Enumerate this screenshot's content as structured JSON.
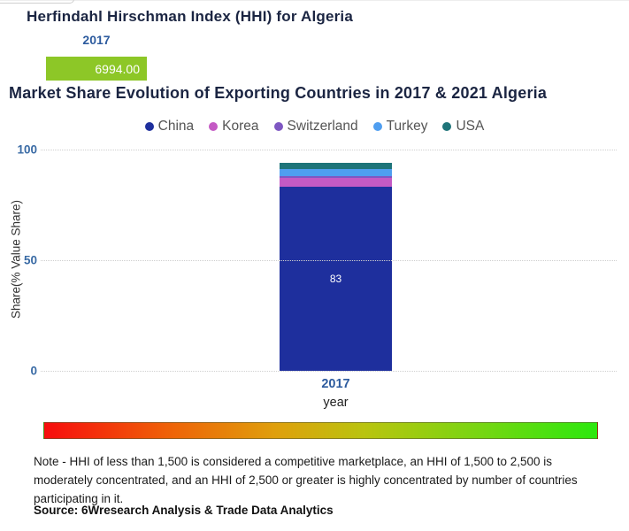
{
  "hhi_chart": {
    "title": "Herfindahl Hirschman Index (HHI) for Algeria",
    "year_label": "2017",
    "value_label": "6994.00",
    "bar_color": "#8dc727"
  },
  "market_chart": {
    "title": "Market Share Evolution of Exporting Countries in 2017 & 2021 Algeria",
    "x_tick": "2017",
    "xlabel": "year",
    "ylabel": "Share(% Value Share)"
  },
  "footer": {
    "note": "Note - HHI of less than 1,500 is considered a competitive marketplace, an HHI of 1,500 to 2,500 is moderately concentrated, and an HHI of 2,500 or greater is highly concentrated by number of countries participating in it.",
    "source": "Source: 6Wresearch Analysis & Trade Data Analytics"
  },
  "colors": {
    "title_navy": "#1b2542",
    "axis_blue": "#2d5b9e",
    "ytick_blue": "#3a6ba5",
    "legend_text": "#555555",
    "gridline": "#cfcfcf",
    "hhi_green": "#8dc727",
    "gradient_stops": [
      "#f70d0d",
      "#ef6008 22%",
      "#dfa00c 42%",
      "#b9c40f 58%",
      "#7ad512 78%",
      "#2ce80e"
    ]
  },
  "chart_data": [
    {
      "type": "bar",
      "orientation": "horizontal",
      "title": "Herfindahl Hirschman Index (HHI) for Algeria",
      "categories": [
        "2017"
      ],
      "values": [
        6994.0
      ],
      "value_labels": [
        "6994.00"
      ],
      "bar_color": "#8dc727"
    },
    {
      "type": "bar",
      "subtype": "stacked",
      "title": "Market Share Evolution of Exporting Countries in 2017 & 2021 Algeria",
      "categories": [
        "2017"
      ],
      "series": [
        {
          "name": "China",
          "color": "#1e2f9d",
          "values": [
            83
          ],
          "label": "83"
        },
        {
          "name": "Korea",
          "color": "#c45ac4",
          "values": [
            4
          ]
        },
        {
          "name": "Switzerland",
          "color": "#7e57c2",
          "values": [
            1
          ]
        },
        {
          "name": "Turkey",
          "color": "#4f9ef0",
          "values": [
            3
          ]
        },
        {
          "name": "USA",
          "color": "#1e7479",
          "values": [
            3
          ]
        }
      ],
      "xlabel": "year",
      "ylabel": "Share(% Value Share)",
      "ylim": [
        0,
        100
      ],
      "yticks": [
        0,
        50,
        100
      ],
      "grid": "horizontal-dotted",
      "legend_position": "top",
      "visible_data_labels": [
        "83"
      ]
    }
  ]
}
